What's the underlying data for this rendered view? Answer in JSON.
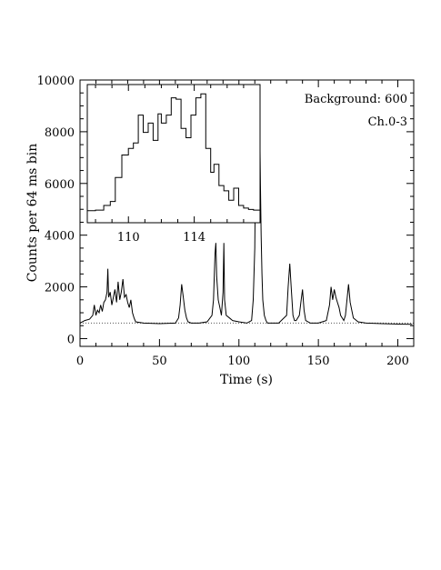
{
  "chart_data": {
    "type": "line",
    "title": "",
    "xlabel": "Time (s)",
    "ylabel": "Counts per 64 ms bin",
    "xlim": [
      0,
      210
    ],
    "ylim": [
      -300,
      10000
    ],
    "x_ticks": [
      0,
      50,
      100,
      150,
      200
    ],
    "x_tick_labels": [
      "0",
      "50",
      "100",
      "150",
      "200"
    ],
    "y_ticks": [
      0,
      2000,
      4000,
      6000,
      8000,
      10000
    ],
    "y_tick_labels": [
      "0",
      "2000",
      "4000",
      "6000",
      "8000",
      "10000"
    ],
    "annotations": [
      "Background: 600",
      "Ch.0-3"
    ],
    "background_level": 600,
    "series": [
      {
        "x": [
          0,
          3,
          6,
          8,
          9,
          10,
          11,
          12,
          13,
          14,
          15,
          16,
          17,
          17.5,
          18,
          19,
          20,
          21,
          22,
          23,
          24,
          25,
          26,
          27,
          28,
          29,
          30,
          31,
          32,
          33,
          34,
          35,
          40,
          50,
          60,
          62,
          63,
          64,
          65,
          66,
          67,
          68,
          70,
          75,
          80,
          83,
          84,
          85,
          85.5,
          86,
          87,
          88,
          89,
          90,
          90.5,
          91,
          92,
          94,
          96,
          100,
          105,
          108,
          109,
          110,
          110.5,
          111,
          111.5,
          112,
          112.5,
          113,
          113.5,
          114,
          114.5,
          115,
          116,
          117,
          118,
          120,
          125,
          130,
          131,
          132,
          133,
          134,
          135,
          136,
          138,
          139,
          140,
          141,
          142,
          145,
          150,
          155,
          157,
          158,
          159,
          160,
          161,
          162,
          163,
          164,
          166,
          167,
          168,
          169,
          170,
          172,
          175,
          180,
          190,
          200,
          209
        ],
        "y": [
          600,
          700,
          750,
          900,
          1300,
          900,
          1100,
          1000,
          1300,
          1050,
          1400,
          1500,
          1800,
          2700,
          1600,
          1800,
          1300,
          1600,
          1900,
          1400,
          2200,
          1500,
          1800,
          2300,
          1600,
          1700,
          1400,
          1200,
          1500,
          1000,
          800,
          650,
          600,
          580,
          600,
          800,
          1300,
          2100,
          1600,
          1100,
          800,
          650,
          600,
          600,
          650,
          900,
          1500,
          3300,
          3700,
          2400,
          1500,
          1200,
          900,
          1800,
          3700,
          1500,
          900,
          800,
          700,
          650,
          600,
          700,
          1500,
          3500,
          7000,
          4500,
          6800,
          8000,
          5500,
          8800,
          6000,
          4000,
          2500,
          1500,
          900,
          700,
          600,
          600,
          600,
          900,
          2000,
          2900,
          1900,
          900,
          700,
          700,
          900,
          1400,
          1900,
          1100,
          700,
          600,
          600,
          700,
          1300,
          2000,
          1500,
          1900,
          1600,
          1400,
          1200,
          900,
          700,
          900,
          1500,
          2100,
          1400,
          800,
          650,
          600,
          580,
          560,
          550
        ]
      }
    ],
    "inset": {
      "type": "line",
      "xlim": [
        107.5,
        118
      ],
      "ylim": [
        -600,
        9800
      ],
      "x_ticks": [
        110,
        114
      ],
      "x_tick_labels": [
        "110",
        "114"
      ],
      "series": [
        {
          "x": [
            107.5,
            108,
            108.5,
            108.9,
            109.2,
            109.6,
            110,
            110.3,
            110.6,
            110.9,
            111.2,
            111.5,
            111.8,
            112,
            112.3,
            112.6,
            112.9,
            113.2,
            113.5,
            113.8,
            114.1,
            114.4,
            114.7,
            115,
            115.2,
            115.5,
            115.8,
            116.1,
            116.4,
            116.7,
            117,
            117.3,
            117.6,
            118
          ],
          "y": [
            300,
            350,
            700,
            1000,
            2800,
            4500,
            5000,
            5400,
            7500,
            6200,
            6900,
            5600,
            7600,
            6900,
            7500,
            8800,
            8700,
            6500,
            5800,
            7500,
            8800,
            9100,
            5000,
            3200,
            3800,
            2200,
            1800,
            1100,
            2000,
            700,
            500,
            400,
            350,
            250
          ]
        }
      ]
    }
  }
}
